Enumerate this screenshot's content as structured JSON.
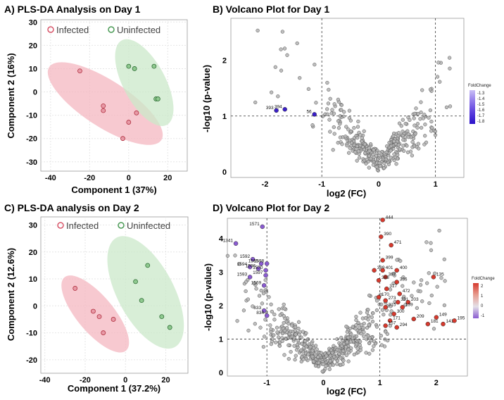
{
  "colors": {
    "infected": "#d8566a",
    "infected_fill": "#f4b7c0",
    "uninfected": "#4a9a55",
    "uninfected_fill": "#cbe8c9",
    "volcano_point": "#b4b4b4",
    "neg_fc": "#3a1fc8",
    "pos_fc": "#d63a2e",
    "purple_fc": "#8a5bd1"
  },
  "chart_data": [
    {
      "panel": "A",
      "type": "scatter",
      "title": "A) PLS-DA Analysis on Day 1",
      "xlabel": "Component 1 (37%)",
      "ylabel": "Component 2 (16%)",
      "xlim": [
        -45,
        30
      ],
      "ylim": [
        -34,
        31
      ],
      "xticks": [
        -40,
        -20,
        0,
        20
      ],
      "yticks": [
        -30,
        -20,
        -10,
        0,
        10,
        20,
        30
      ],
      "legend": [
        "Infected",
        "Uninfected"
      ],
      "series": [
        {
          "name": "Infected",
          "x": [
            -25,
            -13,
            -13,
            4,
            0,
            -3
          ],
          "y": [
            9,
            -6,
            -8,
            -9,
            -13,
            -20
          ]
        },
        {
          "name": "Uninfected",
          "x": [
            0,
            3,
            13,
            14,
            15
          ],
          "y": [
            11,
            10,
            11,
            -3,
            -3
          ]
        }
      ]
    },
    {
      "panel": "B",
      "type": "volcano",
      "title": "B) Volcano Plot for Day 1",
      "xlabel": "log2 (FC)",
      "ylabel": "-log10 (p-value)",
      "xlim": [
        -2.6,
        1.5
      ],
      "ylim": [
        -0.1,
        2.75
      ],
      "xticks": [
        -2,
        -1,
        0,
        1
      ],
      "yticks": [
        0,
        1,
        2
      ],
      "thresholds": {
        "x": [
          -1,
          1
        ],
        "y": 1
      },
      "background_points": 380,
      "labeled_points": [
        {
          "label": "393",
          "x": -1.8,
          "y": 1.1
        },
        {
          "label": "394",
          "x": -1.65,
          "y": 1.12
        },
        {
          "label": "56",
          "x": -1.13,
          "y": 1.03
        }
      ],
      "colorbar": {
        "title": "FoldChange",
        "ticks": [
          "-1.3",
          "-1.4",
          "-1.5",
          "-1.6",
          "-1.7",
          "-1.8"
        ]
      }
    },
    {
      "panel": "C",
      "type": "scatter",
      "title": "C) PLS-DA analysis on Day 2",
      "xlabel": "Component 1 (37.2%)",
      "ylabel": "Component 2 (12.6%)",
      "xlim": [
        -42,
        31
      ],
      "ylim": [
        -25,
        33
      ],
      "xticks": [
        -40,
        -20,
        0,
        20
      ],
      "yticks": [
        -20,
        -10,
        0,
        10,
        20,
        30
      ],
      "legend": [
        "Infected",
        "Uninfected"
      ],
      "series": [
        {
          "name": "Infected",
          "x": [
            -25,
            -16,
            -13,
            -6,
            -11
          ],
          "y": [
            6.5,
            -2,
            -4,
            -5,
            -10
          ]
        },
        {
          "name": "Uninfected",
          "x": [
            11,
            5,
            8,
            18,
            22
          ],
          "y": [
            15,
            9,
            2,
            -4,
            -8
          ]
        }
      ]
    },
    {
      "panel": "D",
      "type": "volcano",
      "title": "D) Volcano Plot for Day 2",
      "xlabel": "log2 (FC)",
      "ylabel": "-log10 (p-value)",
      "xlim": [
        -1.7,
        2.55
      ],
      "ylim": [
        -0.1,
        4.6
      ],
      "xticks": [
        -1,
        0,
        1,
        2
      ],
      "yticks": [
        0,
        1,
        2,
        3,
        4
      ],
      "thresholds": {
        "x": [
          -1,
          1
        ],
        "y": 1
      },
      "background_points": 520,
      "labeled_points": [
        {
          "label": "1571",
          "x": -1.08,
          "y": 4.35
        },
        {
          "label": "1341",
          "x": -1.55,
          "y": 3.85
        },
        {
          "label": "1592",
          "x": -1.25,
          "y": 3.38
        },
        {
          "label": "1595",
          "x": -1.1,
          "y": 3.25
        },
        {
          "label": "1598",
          "x": -1.0,
          "y": 3.25
        },
        {
          "label": "1594",
          "x": -1.3,
          "y": 3.15
        },
        {
          "label": "1596",
          "x": -1.15,
          "y": 3.1
        },
        {
          "label": "1570",
          "x": -1.02,
          "y": 3.05
        },
        {
          "label": "1593",
          "x": -1.3,
          "y": 2.85
        },
        {
          "label": "1597",
          "x": -1.02,
          "y": 2.9
        },
        {
          "label": "1569",
          "x": -1.05,
          "y": 2.6
        },
        {
          "label": "833",
          "x": -1.05,
          "y": 1.85
        },
        {
          "label": "834",
          "x": -1.0,
          "y": 1.7
        },
        {
          "label": "444",
          "x": 1.05,
          "y": 4.55
        },
        {
          "label": "390",
          "x": 1.02,
          "y": 4.05
        },
        {
          "label": "471",
          "x": 1.2,
          "y": 3.8
        },
        {
          "label": "399",
          "x": 1.05,
          "y": 3.35
        },
        {
          "label": "389",
          "x": 0.9,
          "y": 3.05
        },
        {
          "label": "401",
          "x": 1.05,
          "y": 3.05
        },
        {
          "label": "400",
          "x": 1.3,
          "y": 3.05
        },
        {
          "label": "387",
          "x": 1.1,
          "y": 2.85
        },
        {
          "label": "388",
          "x": 0.98,
          "y": 2.75
        },
        {
          "label": "386",
          "x": 1.3,
          "y": 2.7
        },
        {
          "label": "135",
          "x": 1.95,
          "y": 2.85
        },
        {
          "label": "317",
          "x": 1.12,
          "y": 2.5
        },
        {
          "label": "472",
          "x": 1.35,
          "y": 2.35
        },
        {
          "label": "170",
          "x": 0.98,
          "y": 2.25
        },
        {
          "label": "273",
          "x": 1.1,
          "y": 2.15
        },
        {
          "label": "331",
          "x": 1.32,
          "y": 2.1
        },
        {
          "label": "203",
          "x": 1.5,
          "y": 2.1
        },
        {
          "label": "315",
          "x": 1.1,
          "y": 1.95
        },
        {
          "label": "139",
          "x": 1.4,
          "y": 1.95
        },
        {
          "label": "300",
          "x": 1.25,
          "y": 1.75
        },
        {
          "label": "171",
          "x": 1.18,
          "y": 1.55
        },
        {
          "label": "209",
          "x": 1.6,
          "y": 1.6
        },
        {
          "label": "157",
          "x": 1.1,
          "y": 1.4
        },
        {
          "label": "294",
          "x": 1.3,
          "y": 1.35
        },
        {
          "label": "149",
          "x": 2.0,
          "y": 1.65
        },
        {
          "label": "195",
          "x": 2.32,
          "y": 1.55
        },
        {
          "label": "181",
          "x": 1.85,
          "y": 1.45
        },
        {
          "label": "141",
          "x": 2.12,
          "y": 1.45
        }
      ],
      "colorbar": {
        "title": "FoldChange",
        "ticks": [
          "2",
          "1",
          "0",
          "-1"
        ]
      }
    }
  ]
}
